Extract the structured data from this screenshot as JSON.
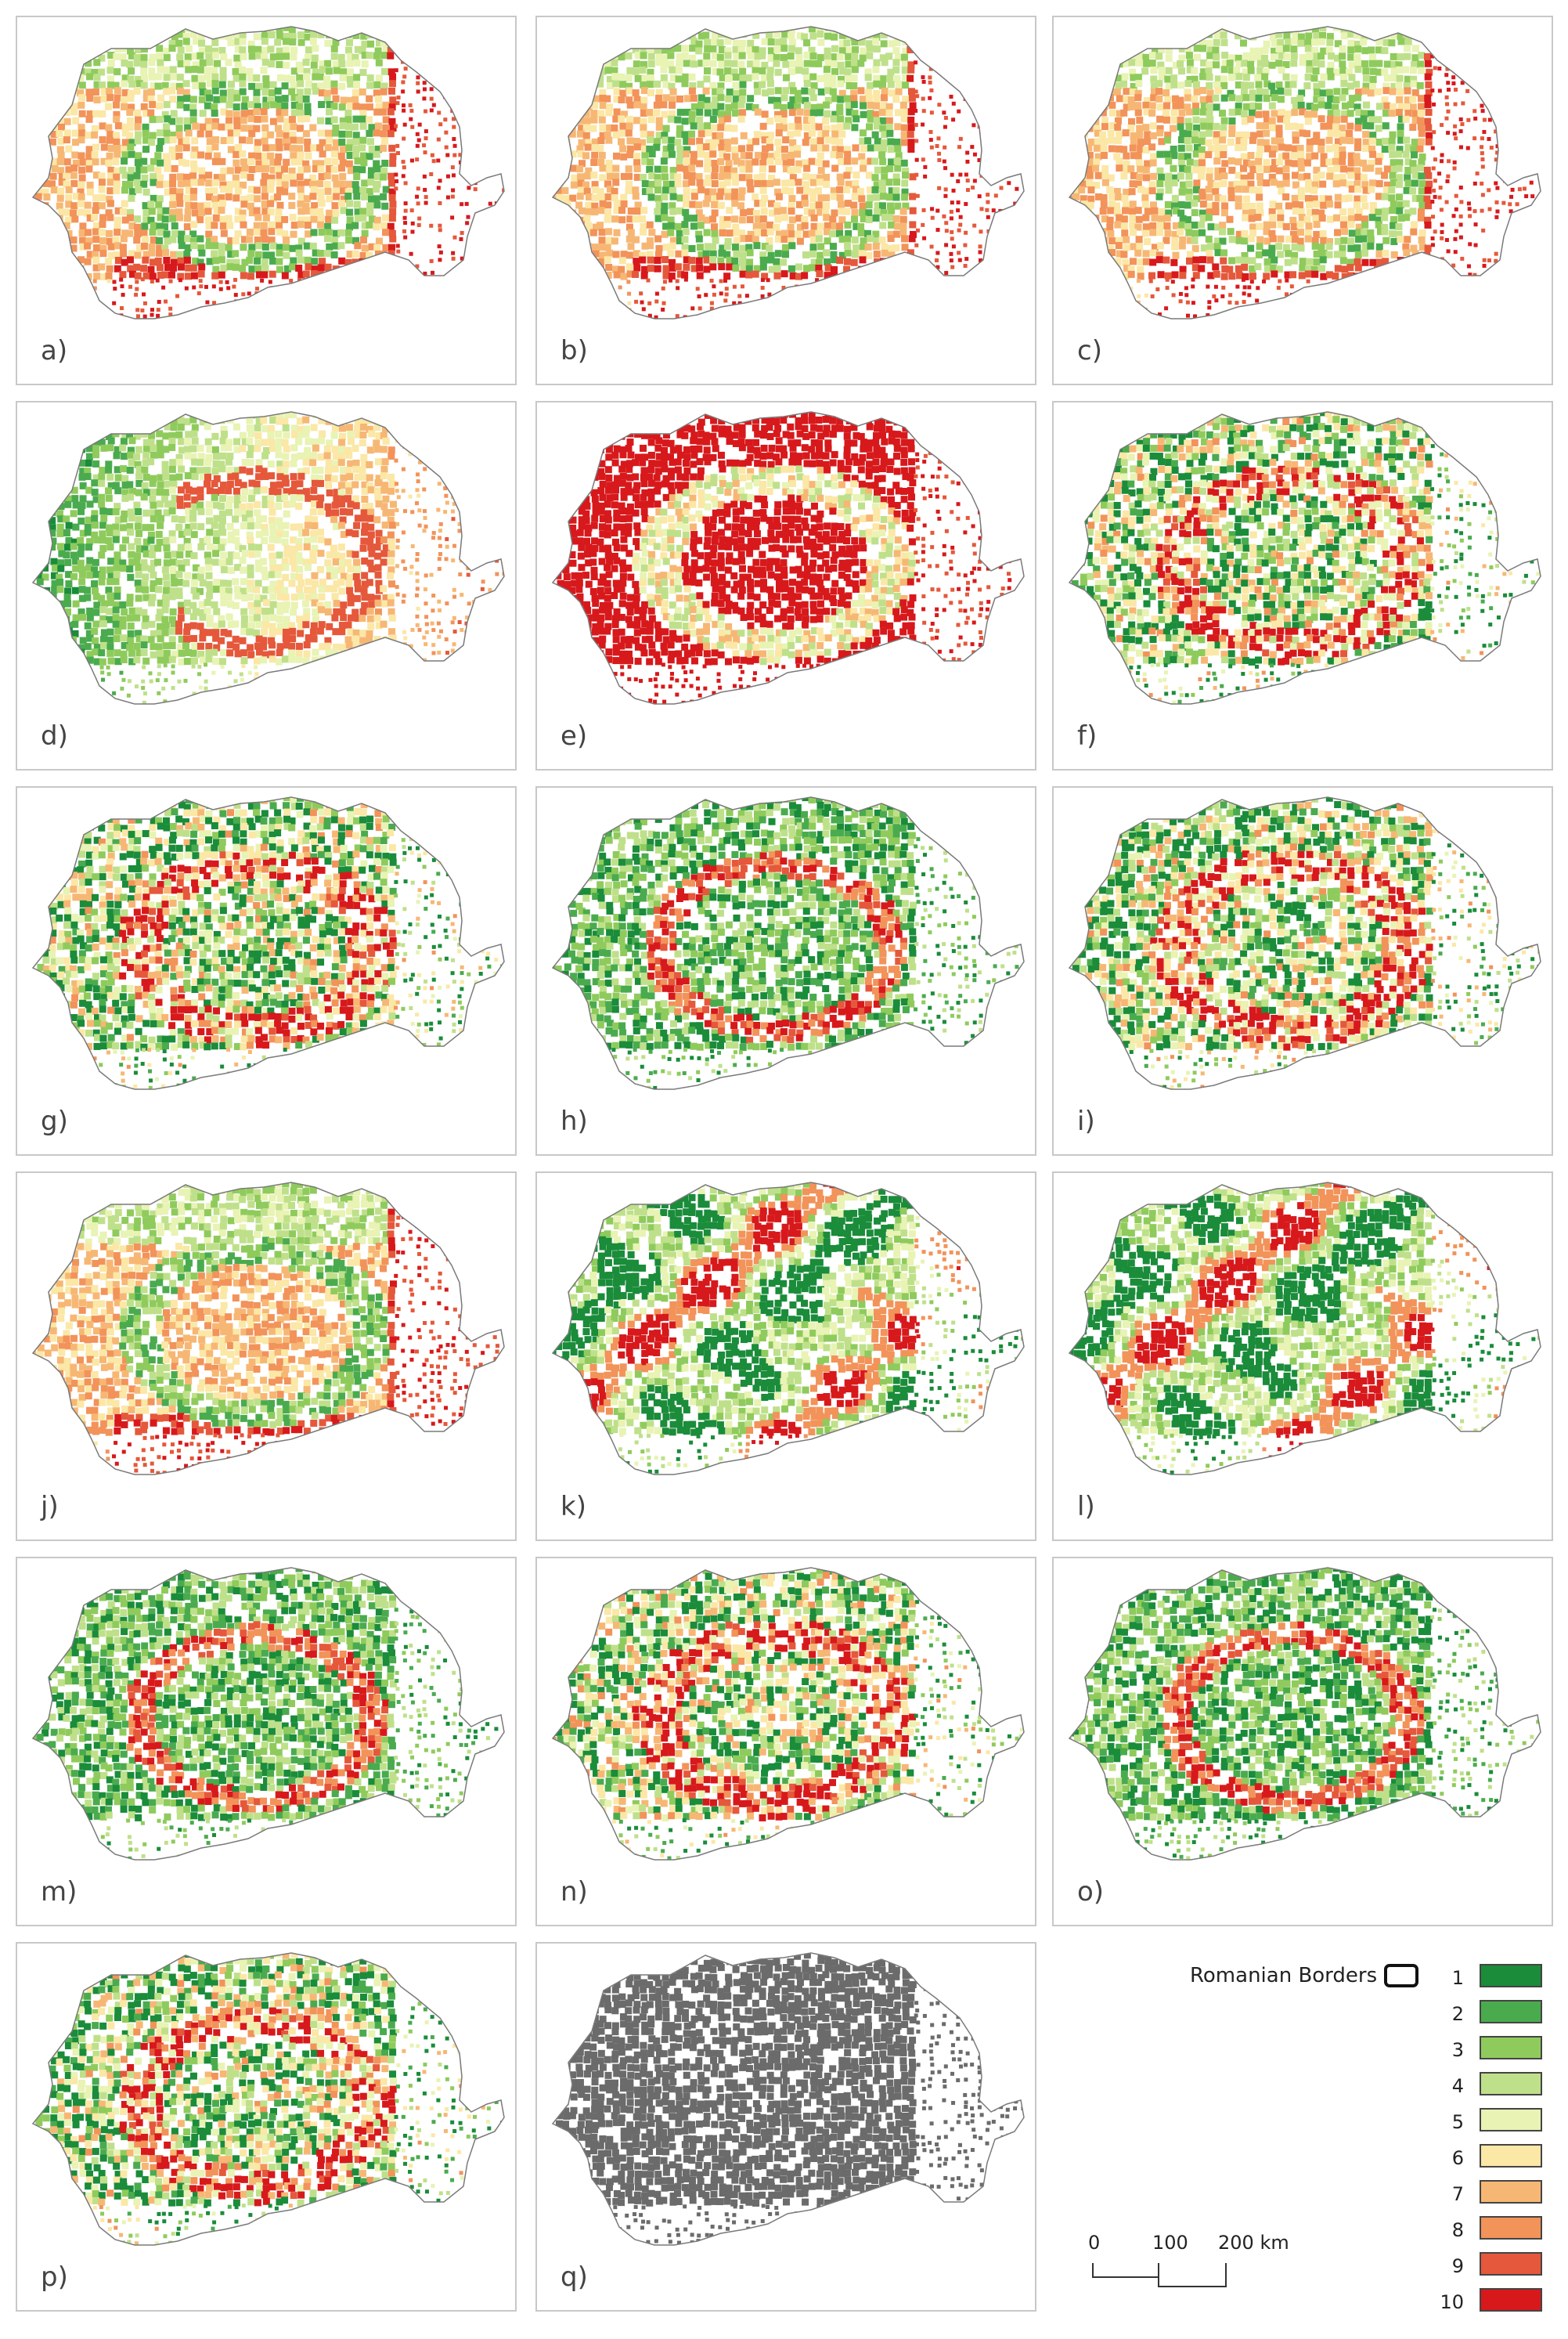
{
  "panels": [
    {
      "label": "a)"
    },
    {
      "label": "b)"
    },
    {
      "label": "c)"
    },
    {
      "label": "d)"
    },
    {
      "label": "e)"
    },
    {
      "label": "f)"
    },
    {
      "label": "g)"
    },
    {
      "label": "h)"
    },
    {
      "label": "i)"
    },
    {
      "label": "j)"
    },
    {
      "label": "k)"
    },
    {
      "label": "l)"
    },
    {
      "label": "m)"
    },
    {
      "label": "n)"
    },
    {
      "label": "o)"
    },
    {
      "label": "p)"
    },
    {
      "label": "q)"
    }
  ],
  "legend": {
    "border_label": "Romanian Borders",
    "classes": [
      {
        "value": "1",
        "color": "#1a8c3a"
      },
      {
        "value": "2",
        "color": "#4aab4e"
      },
      {
        "value": "3",
        "color": "#8fcb5c"
      },
      {
        "value": "4",
        "color": "#bfe08a"
      },
      {
        "value": "5",
        "color": "#e8f3b4"
      },
      {
        "value": "6",
        "color": "#fbe7a6"
      },
      {
        "value": "7",
        "color": "#f7b774"
      },
      {
        "value": "8",
        "color": "#f2935a"
      },
      {
        "value": "9",
        "color": "#e5583b"
      },
      {
        "value": "10",
        "color": "#d7191c"
      }
    ]
  },
  "scale": {
    "tick_0": "0",
    "tick_1": "100",
    "tick_2": "200 km"
  },
  "map_styles": [
    "wgr",
    "wgr",
    "wgr",
    "grw",
    "red",
    "mix",
    "mix",
    "grn",
    "mix",
    "wgr",
    "blob",
    "blob",
    "grn",
    "mix",
    "grn",
    "mix",
    "gray"
  ]
}
